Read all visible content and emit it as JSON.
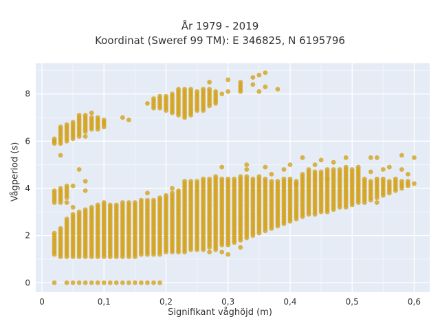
{
  "chart_data": {
    "type": "scatter",
    "title": "År 1979 - 2019",
    "subtitle": "Koordinat (Sweref 99 TM): E 346825, N 6195796",
    "xlabel": "Signifikant våghöjd (m)",
    "ylabel": "Vågperiod (s)",
    "xlim": [
      -0.01,
      0.625
    ],
    "ylim": [
      -0.4,
      9.3
    ],
    "xticks": [
      0,
      0.1,
      0.2,
      0.3,
      0.4,
      0.5,
      0.6
    ],
    "xtick_labels": [
      "0",
      "0,1",
      "0,2",
      "0,3",
      "0,4",
      "0,5",
      "0,6"
    ],
    "yticks": [
      0,
      2,
      4,
      6,
      8
    ],
    "ytick_labels": [
      "0",
      "2",
      "4",
      "6",
      "8"
    ],
    "grid": true,
    "marker_color": "#d4a017",
    "columns": [
      {
        "x": 0.02,
        "ranges": [
          [
            1.2,
            2.1
          ],
          [
            3.4,
            3.9
          ],
          [
            5.9,
            6.1
          ]
        ],
        "extra": [
          0,
          6.0
        ]
      },
      {
        "x": 0.03,
        "ranges": [
          [
            1.1,
            2.3
          ],
          [
            3.4,
            4.0
          ],
          [
            5.9,
            6.6
          ]
        ],
        "extra": [
          5.4
        ]
      },
      {
        "x": 0.04,
        "ranges": [
          [
            1.1,
            2.7
          ],
          [
            3.6,
            4.1
          ],
          [
            6.0,
            6.7
          ]
        ],
        "extra": [
          0,
          3.4
        ]
      },
      {
        "x": 0.05,
        "ranges": [
          [
            1.1,
            2.9
          ],
          [
            6.1,
            6.8
          ]
        ],
        "extra": [
          0,
          3.2,
          4.1
        ]
      },
      {
        "x": 0.06,
        "ranges": [
          [
            1.1,
            3.0
          ],
          [
            6.2,
            7.0
          ]
        ],
        "extra": [
          0,
          4.8,
          7.1
        ]
      },
      {
        "x": 0.07,
        "ranges": [
          [
            1.1,
            3.1
          ],
          [
            6.4,
            7.1
          ]
        ],
        "extra": [
          0,
          3.9,
          4.3,
          6.2
        ]
      },
      {
        "x": 0.08,
        "ranges": [
          [
            1.1,
            3.2
          ],
          [
            6.5,
            7.0
          ]
        ],
        "extra": [
          0,
          7.2
        ]
      },
      {
        "x": 0.09,
        "ranges": [
          [
            1.1,
            3.3
          ],
          [
            6.5,
            7.0
          ]
        ],
        "extra": [
          0
        ]
      },
      {
        "x": 0.1,
        "ranges": [
          [
            1.1,
            3.4
          ],
          [
            6.6,
            6.9
          ]
        ],
        "extra": [
          0
        ]
      },
      {
        "x": 0.11,
        "ranges": [
          [
            1.1,
            3.3
          ]
        ],
        "extra": [
          0
        ]
      },
      {
        "x": 0.12,
        "ranges": [
          [
            1.1,
            3.3
          ]
        ],
        "extra": [
          0
        ]
      },
      {
        "x": 0.13,
        "ranges": [
          [
            1.1,
            3.4
          ]
        ],
        "extra": [
          0,
          7.0
        ]
      },
      {
        "x": 0.14,
        "ranges": [
          [
            1.1,
            3.4
          ]
        ],
        "extra": [
          0,
          6.9
        ]
      },
      {
        "x": 0.15,
        "ranges": [
          [
            1.1,
            3.4
          ]
        ],
        "extra": [
          0
        ]
      },
      {
        "x": 0.16,
        "ranges": [
          [
            1.2,
            3.5
          ]
        ],
        "extra": [
          0
        ]
      },
      {
        "x": 0.17,
        "ranges": [
          [
            1.2,
            3.5
          ]
        ],
        "extra": [
          0,
          3.8,
          7.6
        ]
      },
      {
        "x": 0.18,
        "ranges": [
          [
            1.2,
            3.5
          ],
          [
            7.4,
            7.8
          ]
        ],
        "extra": [
          0
        ]
      },
      {
        "x": 0.19,
        "ranges": [
          [
            1.2,
            3.6
          ],
          [
            7.4,
            7.9
          ]
        ],
        "extra": [
          0
        ]
      },
      {
        "x": 0.2,
        "ranges": [
          [
            1.3,
            3.7
          ],
          [
            7.3,
            7.9
          ]
        ],
        "extra": []
      },
      {
        "x": 0.21,
        "ranges": [
          [
            1.3,
            3.8
          ],
          [
            7.2,
            8.0
          ]
        ],
        "extra": [
          4.0
        ]
      },
      {
        "x": 0.22,
        "ranges": [
          [
            1.3,
            3.9
          ],
          [
            7.1,
            8.2
          ]
        ],
        "extra": []
      },
      {
        "x": 0.23,
        "ranges": [
          [
            1.3,
            4.3
          ],
          [
            7.0,
            8.2
          ]
        ],
        "extra": []
      },
      {
        "x": 0.24,
        "ranges": [
          [
            1.4,
            4.3
          ],
          [
            7.1,
            8.2
          ]
        ],
        "extra": []
      },
      {
        "x": 0.25,
        "ranges": [
          [
            1.4,
            4.3
          ],
          [
            7.3,
            8.1
          ]
        ],
        "extra": []
      },
      {
        "x": 0.26,
        "ranges": [
          [
            1.4,
            4.4
          ],
          [
            7.3,
            8.2
          ]
        ],
        "extra": []
      },
      {
        "x": 0.27,
        "ranges": [
          [
            1.5,
            4.4
          ],
          [
            7.5,
            8.2
          ]
        ],
        "extra": [
          1.3,
          8.5
        ]
      },
      {
        "x": 0.28,
        "ranges": [
          [
            1.5,
            4.5
          ],
          [
            7.6,
            8.1
          ]
        ],
        "extra": [
          1.4
        ]
      },
      {
        "x": 0.29,
        "ranges": [
          [
            1.6,
            4.4
          ]
        ],
        "extra": [
          1.3,
          4.9,
          8.0
        ]
      },
      {
        "x": 0.3,
        "ranges": [
          [
            1.6,
            4.4
          ]
        ],
        "extra": [
          1.2,
          8.1,
          8.6
        ]
      },
      {
        "x": 0.31,
        "ranges": [
          [
            1.7,
            4.4
          ]
        ],
        "extra": []
      },
      {
        "x": 0.32,
        "ranges": [
          [
            1.8,
            4.5
          ],
          [
            8.1,
            8.5
          ]
        ],
        "extra": [
          1.5
        ]
      },
      {
        "x": 0.33,
        "ranges": [
          [
            1.9,
            4.5
          ]
        ],
        "extra": [
          5.0,
          4.8
        ]
      },
      {
        "x": 0.34,
        "ranges": [
          [
            2.0,
            4.4
          ]
        ],
        "extra": [
          8.4,
          8.7
        ]
      },
      {
        "x": 0.35,
        "ranges": [
          [
            2.1,
            4.5
          ]
        ],
        "extra": [
          8.1,
          8.8
        ]
      },
      {
        "x": 0.36,
        "ranges": [
          [
            2.2,
            4.4
          ]
        ],
        "extra": [
          4.9,
          8.9,
          8.3
        ]
      },
      {
        "x": 0.37,
        "ranges": [
          [
            2.3,
            4.3
          ]
        ],
        "extra": [
          4.6
        ]
      },
      {
        "x": 0.38,
        "ranges": [
          [
            2.4,
            4.3
          ]
        ],
        "extra": [
          8.2
        ]
      },
      {
        "x": 0.39,
        "ranges": [
          [
            2.5,
            4.4
          ]
        ],
        "extra": [
          4.8
        ]
      },
      {
        "x": 0.4,
        "ranges": [
          [
            2.6,
            4.4
          ]
        ],
        "extra": [
          5.0
        ]
      },
      {
        "x": 0.41,
        "ranges": [
          [
            2.7,
            4.3
          ]
        ],
        "extra": [
          4.2
        ]
      },
      {
        "x": 0.42,
        "ranges": [
          [
            2.8,
            4.6
          ]
        ],
        "extra": [
          5.3
        ]
      },
      {
        "x": 0.43,
        "ranges": [
          [
            2.9,
            4.8
          ]
        ],
        "extra": []
      },
      {
        "x": 0.44,
        "ranges": [
          [
            2.9,
            4.7
          ]
        ],
        "extra": [
          5.0
        ]
      },
      {
        "x": 0.45,
        "ranges": [
          [
            3.0,
            4.7
          ]
        ],
        "extra": [
          5.2
        ]
      },
      {
        "x": 0.46,
        "ranges": [
          [
            3.0,
            4.8
          ]
        ],
        "extra": [
          4.4
        ]
      },
      {
        "x": 0.47,
        "ranges": [
          [
            3.1,
            4.8
          ]
        ],
        "extra": [
          5.1
        ]
      },
      {
        "x": 0.48,
        "ranges": [
          [
            3.2,
            4.8
          ]
        ],
        "extra": []
      },
      {
        "x": 0.49,
        "ranges": [
          [
            3.2,
            4.9
          ]
        ],
        "extra": [
          5.3
        ]
      },
      {
        "x": 0.5,
        "ranges": [
          [
            3.3,
            4.8
          ]
        ],
        "extra": []
      },
      {
        "x": 0.51,
        "ranges": [
          [
            3.4,
            4.8
          ]
        ],
        "extra": [
          4.9
        ]
      },
      {
        "x": 0.52,
        "ranges": [
          [
            3.4,
            4.4
          ]
        ],
        "extra": []
      },
      {
        "x": 0.53,
        "ranges": [
          [
            3.5,
            4.3
          ]
        ],
        "extra": [
          5.3,
          4.7
        ]
      },
      {
        "x": 0.54,
        "ranges": [
          [
            3.6,
            4.4
          ]
        ],
        "extra": [
          3.4,
          5.3
        ]
      },
      {
        "x": 0.55,
        "ranges": [
          [
            3.7,
            4.4
          ]
        ],
        "extra": [
          4.8
        ]
      },
      {
        "x": 0.56,
        "ranges": [
          [
            3.8,
            4.3
          ]
        ],
        "extra": [
          4.9
        ]
      },
      {
        "x": 0.57,
        "ranges": [
          [
            3.9,
            4.4
          ]
        ],
        "extra": []
      },
      {
        "x": 0.58,
        "ranges": [
          [
            4.0,
            4.3
          ]
        ],
        "extra": [
          5.4,
          4.8
        ]
      },
      {
        "x": 0.59,
        "ranges": [
          [
            4.1,
            4.3
          ]
        ],
        "extra": [
          4.6
        ]
      },
      {
        "x": 0.6,
        "ranges": [
          [
            4.2,
            4.2
          ]
        ],
        "extra": [
          5.3
        ]
      }
    ]
  }
}
